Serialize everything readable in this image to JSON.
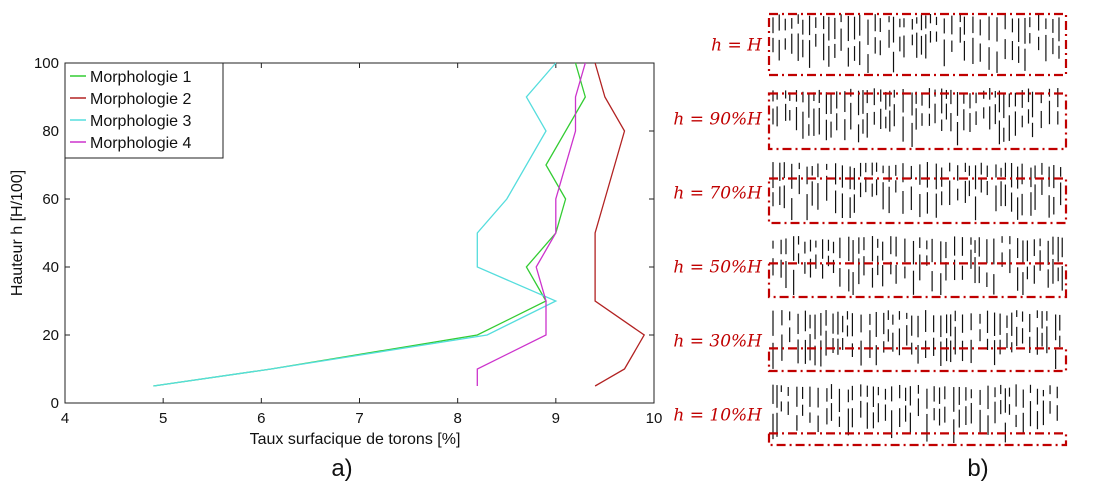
{
  "chart_data": {
    "type": "line",
    "title": "",
    "xlabel": "Taux surfacique de torons [%]",
    "ylabel": "Hauteur h [H/100]",
    "xlim": [
      4,
      10
    ],
    "ylim": [
      0,
      100
    ],
    "xticks": [
      4,
      5,
      6,
      7,
      8,
      9,
      10
    ],
    "yticks": [
      0,
      20,
      40,
      60,
      80,
      100
    ],
    "grid": false,
    "legend_position": "top-left",
    "series": [
      {
        "name": "Morphologie 1",
        "color": "#33cc33",
        "x": [
          4.9,
          6.1,
          8.2,
          8.9,
          8.7,
          9.0,
          9.1,
          8.9,
          9.3,
          9.2
        ],
        "y": [
          5,
          10,
          20,
          30,
          40,
          50,
          60,
          70,
          90,
          100
        ]
      },
      {
        "name": "Morphologie 2",
        "color": "#b22222",
        "x": [
          9.4,
          9.7,
          9.9,
          9.4,
          9.4,
          9.4,
          9.5,
          9.7,
          9.5,
          9.4
        ],
        "y": [
          5,
          10,
          20,
          30,
          40,
          50,
          60,
          80,
          90,
          100
        ]
      },
      {
        "name": "Morphologie 3",
        "color": "#55dddd",
        "x": [
          4.9,
          6.1,
          8.3,
          9.0,
          8.2,
          8.2,
          8.5,
          8.9,
          8.7,
          9.0
        ],
        "y": [
          5,
          10,
          20,
          30,
          40,
          50,
          60,
          80,
          90,
          100
        ]
      },
      {
        "name": "Morphologie 4",
        "color": "#cc33cc",
        "x": [
          8.2,
          8.2,
          8.9,
          8.9,
          8.8,
          9.0,
          9.0,
          9.2,
          9.2,
          9.3
        ],
        "y": [
          5,
          10,
          20,
          30,
          40,
          50,
          60,
          80,
          90,
          100
        ]
      }
    ]
  },
  "panel_labels": {
    "a": "a)",
    "b": "b)"
  },
  "morphology_panel": {
    "line_color": "#c00000",
    "labels": [
      "h = H",
      "h = 90%H",
      "h = 70%H",
      "h = 50%H",
      "h = 30%H",
      "h = 10%H"
    ],
    "cut_level_fraction": [
      1.0,
      0.9,
      0.7,
      0.5,
      0.3,
      0.1
    ]
  }
}
